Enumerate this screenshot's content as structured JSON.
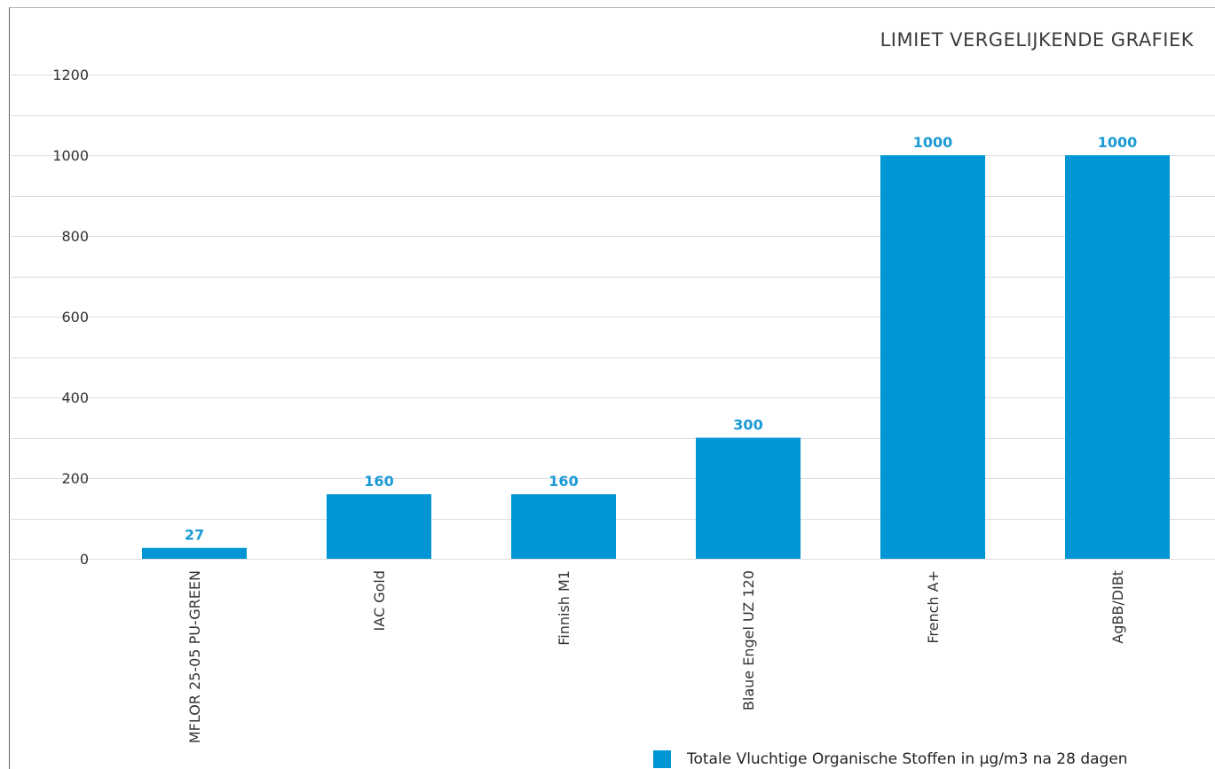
{
  "colors": {
    "bar": "#0096d6",
    "value_label": "#1a9ad6",
    "grid": "#dddddd"
  },
  "chart_data": {
    "type": "bar",
    "title": "LIMIET VERGELIJKENDE GRAFIEK",
    "categories": [
      "MFLOR 25-05 PU-GREEN",
      "IAC Gold",
      "Finnish M1",
      "Blaue Engel UZ 120",
      "French A+",
      "AgBB/DIBt"
    ],
    "series": [
      {
        "name": "Totale Vluchtige Organische Stoffen in µg/m3 na 28 dagen",
        "values": [
          27,
          160,
          160,
          300,
          1000,
          1000
        ]
      }
    ],
    "ylim": [
      0,
      1200
    ],
    "yticks": [
      0,
      200,
      400,
      600,
      800,
      1000,
      1200
    ],
    "xlabel": "",
    "ylabel": "",
    "grid": true,
    "legend_position": "bottom-right"
  }
}
